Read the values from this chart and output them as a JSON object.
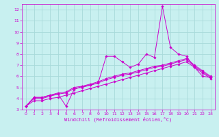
{
  "xlabel": "Windchill (Refroidissement éolien,°C)",
  "bg_color": "#c8f0f0",
  "grid_color": "#a8dada",
  "line_color": "#cc00cc",
  "xlim": [
    -0.5,
    23.5
  ],
  "ylim": [
    3,
    12.5
  ],
  "xticks": [
    0,
    1,
    2,
    3,
    4,
    5,
    6,
    7,
    8,
    9,
    10,
    11,
    12,
    13,
    14,
    15,
    16,
    17,
    18,
    19,
    20,
    21,
    22,
    23
  ],
  "yticks": [
    3,
    4,
    5,
    6,
    7,
    8,
    9,
    10,
    11,
    12
  ],
  "lines": [
    {
      "x": [
        0,
        1,
        2,
        3,
        4,
        5,
        6,
        7,
        8,
        9,
        10,
        11,
        12,
        13,
        14,
        15,
        16,
        17,
        18,
        19,
        20,
        21,
        22,
        23
      ],
      "y": [
        3.3,
        4.1,
        4.1,
        4.3,
        4.4,
        3.3,
        4.8,
        5.1,
        5.2,
        5.4,
        7.8,
        7.8,
        7.3,
        6.8,
        7.1,
        8.0,
        7.7,
        12.3,
        8.6,
        8.0,
        7.8,
        6.8,
        6.0,
        5.9
      ]
    },
    {
      "x": [
        0,
        1,
        2,
        3,
        4,
        5,
        6,
        7,
        8,
        9,
        10,
        11,
        12,
        13,
        14,
        15,
        16,
        17,
        18,
        19,
        20,
        21,
        22,
        23
      ],
      "y": [
        3.3,
        4.1,
        4.1,
        4.3,
        4.5,
        4.6,
        5.0,
        5.1,
        5.3,
        5.5,
        5.8,
        6.0,
        6.2,
        6.3,
        6.5,
        6.7,
        6.9,
        7.0,
        7.2,
        7.4,
        7.6,
        7.0,
        6.5,
        6.0
      ]
    },
    {
      "x": [
        0,
        1,
        2,
        3,
        4,
        5,
        6,
        7,
        8,
        9,
        10,
        11,
        12,
        13,
        14,
        15,
        16,
        17,
        18,
        19,
        20,
        21,
        22,
        23
      ],
      "y": [
        3.3,
        4.0,
        4.0,
        4.2,
        4.4,
        4.5,
        4.9,
        5.0,
        5.2,
        5.4,
        5.7,
        5.9,
        6.1,
        6.2,
        6.4,
        6.6,
        6.8,
        6.9,
        7.1,
        7.3,
        7.5,
        6.9,
        6.4,
        5.9
      ]
    },
    {
      "x": [
        0,
        1,
        2,
        3,
        4,
        5,
        6,
        7,
        8,
        9,
        10,
        11,
        12,
        13,
        14,
        15,
        16,
        17,
        18,
        19,
        20,
        21,
        22,
        23
      ],
      "y": [
        3.3,
        3.8,
        3.8,
        4.0,
        4.1,
        4.3,
        4.5,
        4.7,
        4.9,
        5.1,
        5.3,
        5.5,
        5.7,
        5.9,
        6.1,
        6.3,
        6.5,
        6.7,
        6.9,
        7.1,
        7.3,
        6.8,
        6.3,
        5.8
      ]
    }
  ]
}
